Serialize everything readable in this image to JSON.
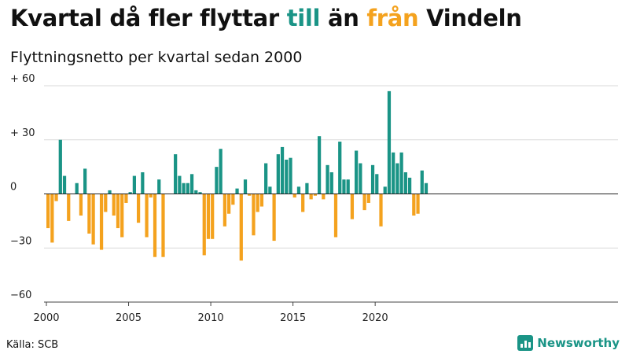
{
  "header": {
    "title_part1": "Kvartal då fler flyttar ",
    "title_till": "till",
    "title_part2": " än ",
    "title_fran": "från",
    "title_part3": " Vindeln",
    "subtitle": "Flyttningsnetto per kvartal sedan 2000"
  },
  "footer": {
    "source": "Källa: SCB",
    "brand": "Newsworthy"
  },
  "colors": {
    "positive": "#1a9486",
    "negative": "#f4a21e",
    "grid": "#d9d9d9",
    "axis": "#444444"
  },
  "chart_data": {
    "type": "bar",
    "title": "Kvartal då fler flyttar till än från Vindeln",
    "subtitle": "Flyttningsnetto per kvartal sedan 2000",
    "x_start_year": 2000,
    "quarters_per_year": 4,
    "ylim": [
      -60,
      60
    ],
    "yticks": [
      {
        "value": 60,
        "label": "+ 60"
      },
      {
        "value": 30,
        "label": "+ 30"
      },
      {
        "value": 0,
        "label": "0"
      },
      {
        "value": -30,
        "label": "−30"
      },
      {
        "value": -60,
        "label": "−60"
      }
    ],
    "xticks": [
      {
        "value": 2000,
        "label": "2000"
      },
      {
        "value": 2005,
        "label": "2005"
      },
      {
        "value": 2010,
        "label": "2010"
      },
      {
        "value": 2015,
        "label": "2015"
      },
      {
        "value": 2020,
        "label": "2020"
      }
    ],
    "values": [
      -19,
      -27,
      -4,
      30,
      10,
      -15,
      0,
      6,
      -12,
      14,
      -22,
      -28,
      0,
      -31,
      -10,
      2,
      -12,
      -19,
      -24,
      -5,
      1,
      10,
      -16,
      12,
      -24,
      -2,
      -35,
      8,
      -35,
      0,
      0,
      22,
      10,
      6,
      6,
      11,
      2,
      1,
      -34,
      -25,
      -25,
      15,
      25,
      -18,
      -11,
      -6,
      3,
      -37,
      8,
      -1,
      -23,
      -10,
      -7,
      17,
      4,
      -26,
      22,
      26,
      19,
      20,
      -2,
      4,
      -10,
      6,
      -3,
      -1,
      32,
      -3,
      16,
      12,
      -24,
      29,
      8,
      8,
      -14,
      24,
      17,
      -9,
      -5,
      16,
      11,
      -18,
      4,
      57,
      23,
      17,
      23,
      12,
      9,
      -12,
      -11,
      13,
      6
    ]
  }
}
